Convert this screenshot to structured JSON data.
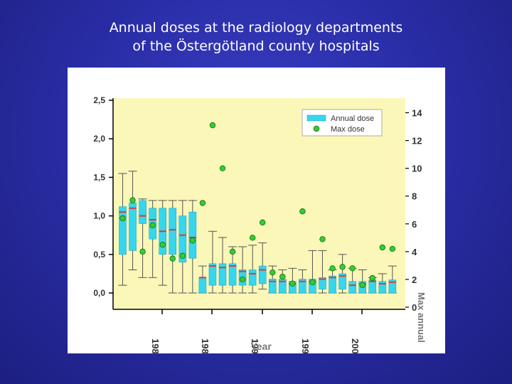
{
  "slide": {
    "title_line1": "Annual doses at the radiology departments",
    "title_line2": "of the Östergötland county hospitals"
  },
  "chart_data": {
    "type": "box",
    "xlabel": "Year",
    "y2label": "Max annual",
    "x_tick_labels": [
      "198",
      "198",
      "199",
      "199",
      "200"
    ],
    "ylim": [
      0,
      2.5
    ],
    "y_ticks": [
      "0,0",
      "0,5",
      "1,0",
      "1,5",
      "2,0",
      "2,5"
    ],
    "y2lim": [
      0,
      15
    ],
    "y2_ticks": [
      "0",
      "2",
      "4",
      "6",
      "8",
      "10",
      "12",
      "14"
    ],
    "legend": {
      "placement": "top-right",
      "entries": [
        "Annual dose",
        "Max dose"
      ]
    },
    "colors": {
      "plot_bg": "#fbf7b8",
      "box": "#35d6ee",
      "median": "#e0383e",
      "max_dose": "#2fcf2f",
      "axis_text": "#333333"
    },
    "series": [
      {
        "name": "Annual dose",
        "boxes": [
          {
            "w_low": 0.1,
            "q1": 0.5,
            "median": 1.05,
            "q3": 1.12,
            "w_high": 1.55
          },
          {
            "w_low": 0.3,
            "q1": 0.55,
            "median": 1.1,
            "q3": 1.17,
            "w_high": 1.58
          },
          {
            "w_low": 0.2,
            "q1": 0.9,
            "median": 1.0,
            "q3": 1.2,
            "w_high": 1.22
          },
          {
            "w_low": 0.2,
            "q1": 0.7,
            "median": 0.95,
            "q3": 1.1,
            "w_high": 1.2
          },
          {
            "w_low": 0.1,
            "q1": 0.5,
            "median": 0.8,
            "q3": 1.1,
            "w_high": 1.2
          },
          {
            "w_low": 0.0,
            "q1": 0.5,
            "median": 0.82,
            "q3": 1.1,
            "w_high": 1.2
          },
          {
            "w_low": 0.0,
            "q1": 0.4,
            "median": 0.75,
            "q3": 1.0,
            "w_high": 1.2
          },
          {
            "w_low": 0.0,
            "q1": 0.45,
            "median": 0.72,
            "q3": 1.05,
            "w_high": 1.2
          },
          {
            "w_low": 0.0,
            "q1": 0.0,
            "median": 0.2,
            "q3": 0.2,
            "w_high": 0.35
          },
          {
            "w_low": 0.0,
            "q1": 0.1,
            "median": 0.35,
            "q3": 0.38,
            "w_high": 0.8
          },
          {
            "w_low": 0.0,
            "q1": 0.1,
            "median": 0.33,
            "q3": 0.38,
            "w_high": 0.72
          },
          {
            "w_low": 0.0,
            "q1": 0.1,
            "median": 0.35,
            "q3": 0.38,
            "w_high": 0.6
          },
          {
            "w_low": 0.0,
            "q1": 0.1,
            "median": 0.28,
            "q3": 0.3,
            "w_high": 0.6
          },
          {
            "w_low": 0.0,
            "q1": 0.1,
            "median": 0.25,
            "q3": 0.3,
            "w_high": 0.62
          },
          {
            "w_low": 0.05,
            "q1": 0.12,
            "median": 0.3,
            "q3": 0.35,
            "w_high": 0.65
          },
          {
            "w_low": 0.0,
            "q1": 0.0,
            "median": 0.15,
            "q3": 0.18,
            "w_high": 0.35
          },
          {
            "w_low": 0.0,
            "q1": 0.0,
            "median": 0.15,
            "q3": 0.18,
            "w_high": 0.3
          },
          {
            "w_low": 0.0,
            "q1": 0.0,
            "median": 0.12,
            "q3": 0.15,
            "w_high": 0.32
          },
          {
            "w_low": 0.0,
            "q1": 0.0,
            "median": 0.15,
            "q3": 0.18,
            "w_high": 0.3
          },
          {
            "w_low": 0.0,
            "q1": 0.0,
            "median": 0.15,
            "q3": 0.18,
            "w_high": 0.55
          },
          {
            "w_low": 0.0,
            "q1": 0.05,
            "median": 0.18,
            "q3": 0.2,
            "w_high": 0.55
          },
          {
            "w_low": 0.0,
            "q1": 0.0,
            "median": 0.2,
            "q3": 0.22,
            "w_high": 0.3
          },
          {
            "w_low": 0.0,
            "q1": 0.05,
            "median": 0.22,
            "q3": 0.25,
            "w_high": 0.5
          },
          {
            "w_low": 0.0,
            "q1": 0.0,
            "median": 0.1,
            "q3": 0.15,
            "w_high": 0.32
          },
          {
            "w_low": 0.0,
            "q1": 0.0,
            "median": 0.12,
            "q3": 0.15,
            "w_high": 0.3
          },
          {
            "w_low": 0.0,
            "q1": 0.0,
            "median": 0.15,
            "q3": 0.17,
            "w_high": 0.2
          },
          {
            "w_low": 0.0,
            "q1": 0.0,
            "median": 0.12,
            "q3": 0.15,
            "w_high": 0.25
          },
          {
            "w_low": 0.0,
            "q1": 0.0,
            "median": 0.14,
            "q3": 0.17,
            "w_high": 0.35
          }
        ]
      },
      {
        "name": "Max dose",
        "axis": "y2",
        "values": [
          6.4,
          7.7,
          4.0,
          5.9,
          4.5,
          3.5,
          3.7,
          4.8,
          7.5,
          13.1,
          10.0,
          4.0,
          2.0,
          5.0,
          6.1,
          2.5,
          2.2,
          1.7,
          6.9,
          1.8,
          4.9,
          2.8,
          2.9,
          2.8,
          1.6,
          2.1,
          4.3,
          4.2
        ]
      }
    ]
  }
}
